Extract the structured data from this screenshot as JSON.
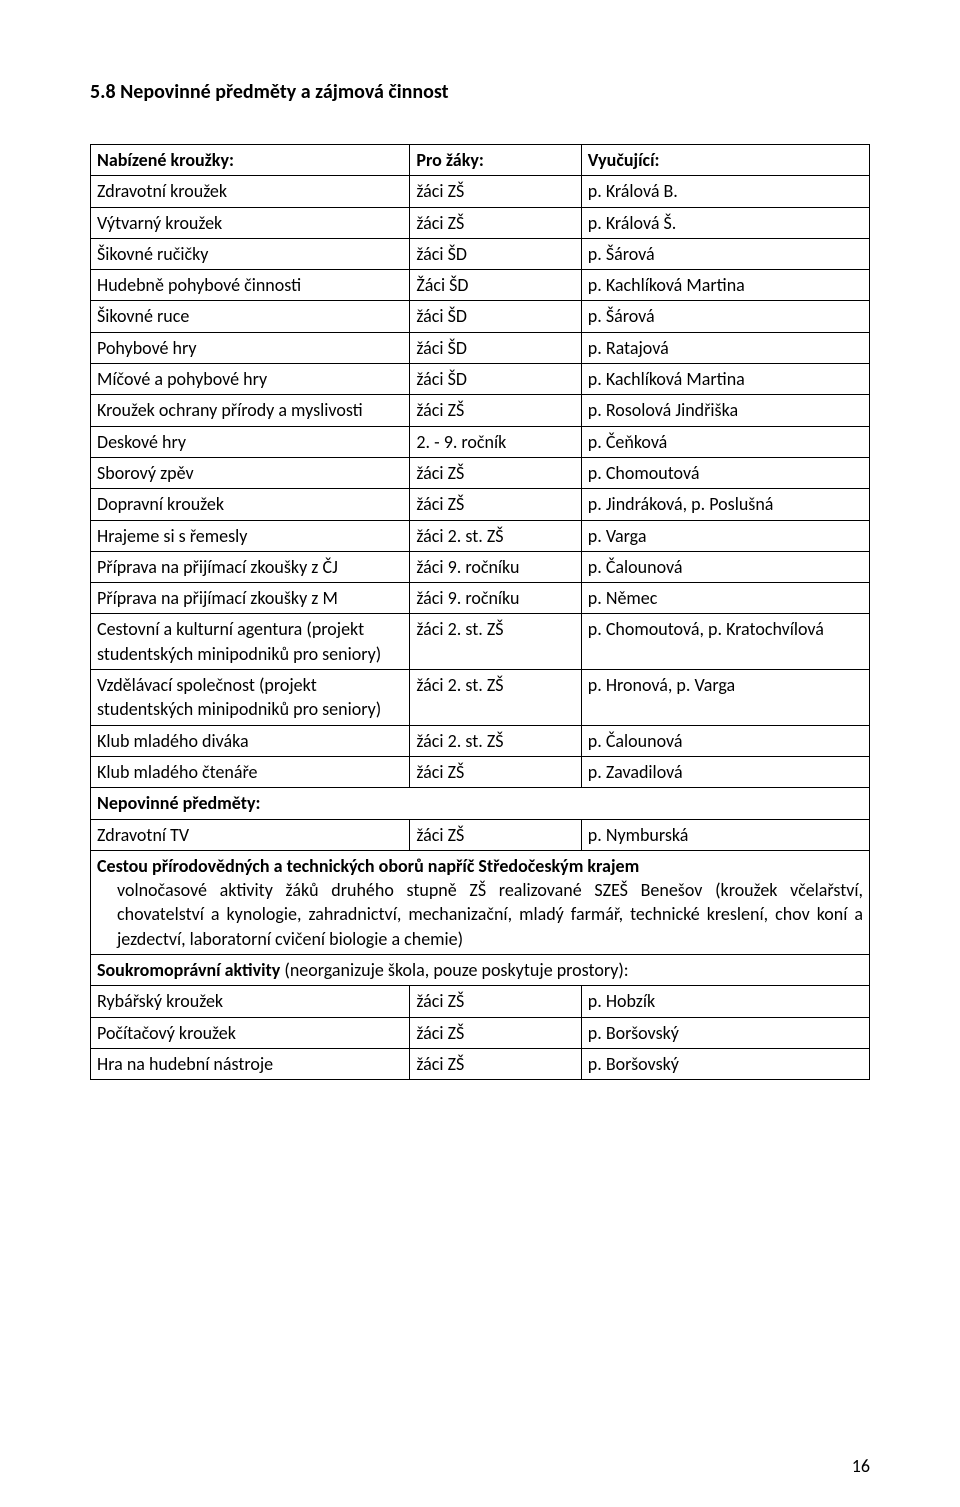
{
  "section_title": "5.8 Nepovinné předměty a zájmová činnost",
  "header": {
    "a": "Nabízené kroužky:",
    "b": "Pro žáky:",
    "c": "Vyučující:"
  },
  "rows": [
    {
      "a": "Zdravotní kroužek",
      "b": "žáci ZŠ",
      "c": "p. Králová B."
    },
    {
      "a": "Výtvarný kroužek",
      "b": "žáci ZŠ",
      "c": "p. Králová Š."
    },
    {
      "a": "Šikovné ručičky",
      "b": "žáci ŠD",
      "c": "p. Šárová"
    },
    {
      "a": "Hudebně pohybové činnosti",
      "b": "Žáci ŠD",
      "c": "p. Kachlíková Martina"
    },
    {
      "a": "Šikovné ruce",
      "b": "žáci ŠD",
      "c": "p. Šárová"
    },
    {
      "a": "Pohybové hry",
      "b": "žáci ŠD",
      "c": "p. Ratajová"
    },
    {
      "a": "Míčové a pohybové hry",
      "b": "žáci ŠD",
      "c": "p. Kachlíková Martina"
    },
    {
      "a": "Kroužek ochrany přírody a myslivosti",
      "b": "žáci ZŠ",
      "c": "p. Rosolová Jindřiška"
    },
    {
      "a": "Deskové hry",
      "b": "2. - 9. ročník",
      "c": "p. Čeňková"
    },
    {
      "a": "Sborový zpěv",
      "b": "žáci ZŠ",
      "c": "p. Chomoutová"
    },
    {
      "a": "Dopravní kroužek",
      "b": "žáci ZŠ",
      "c": "p. Jindráková, p. Poslušná"
    },
    {
      "a": "Hrajeme si s řemesly",
      "b": "žáci 2. st. ZŠ",
      "c": "p. Varga"
    },
    {
      "a": "Příprava na přijímací zkoušky z ČJ",
      "b": "žáci 9. ročníku",
      "c": "p. Čalounová"
    },
    {
      "a": "Příprava na přijímací zkoušky z M",
      "b": "žáci 9. ročníku",
      "c": "p. Němec"
    },
    {
      "a": "Cestovní a kulturní agentura (projekt studentských minipodniků pro seniory)",
      "b": "žáci 2. st. ZŠ",
      "c": "p. Chomoutová, p. Kratochvílová"
    },
    {
      "a": "Vzdělávací společnost (projekt studentských minipodniků pro seniory)",
      "b": "žáci 2. st. ZŠ",
      "c": "p. Hronová, p. Varga"
    },
    {
      "a": "Klub mladého diváka",
      "b": "žáci 2. st. ZŠ",
      "c": "p. Čalounová"
    },
    {
      "a": "Klub mladého čtenáře",
      "b": "žáci ZŠ",
      "c": "p. Zavadilová"
    }
  ],
  "nepovinne_header": "Nepovinné předměty:",
  "nepovinne_rows": [
    {
      "a": "Zdravotní TV",
      "b": "žáci ZŠ",
      "c": "p. Nymburská"
    }
  ],
  "cestou_title": "Cestou přírodovědných a technických oborů napříč Středočeským krajem",
  "cestou_body": "volnočasové aktivity žáků druhého stupně ZŠ realizované SZEŠ Benešov (kroužek včelařství, chovatelství a kynologie, zahradnictví, mechanizační, mladý farmář, technické kreslení, chov koní a jezdectví, laboratorní cvičení biologie a chemie)",
  "soukromo_lead": "Soukromoprávní aktivity ",
  "soukromo_rest": "(neorganizuje škola, pouze poskytuje prostory):",
  "soukromo_rows": [
    {
      "a": "Rybářský kroužek",
      "b": "žáci ZŠ",
      "c": "p. Hobzík"
    },
    {
      "a": "Počítačový kroužek",
      "b": "žáci ZŠ",
      "c": "p. Boršovský"
    },
    {
      "a": "Hra na hudební nástroje",
      "b": "žáci ZŠ",
      "c": "p. Boršovský"
    }
  ],
  "page_number": "16"
}
